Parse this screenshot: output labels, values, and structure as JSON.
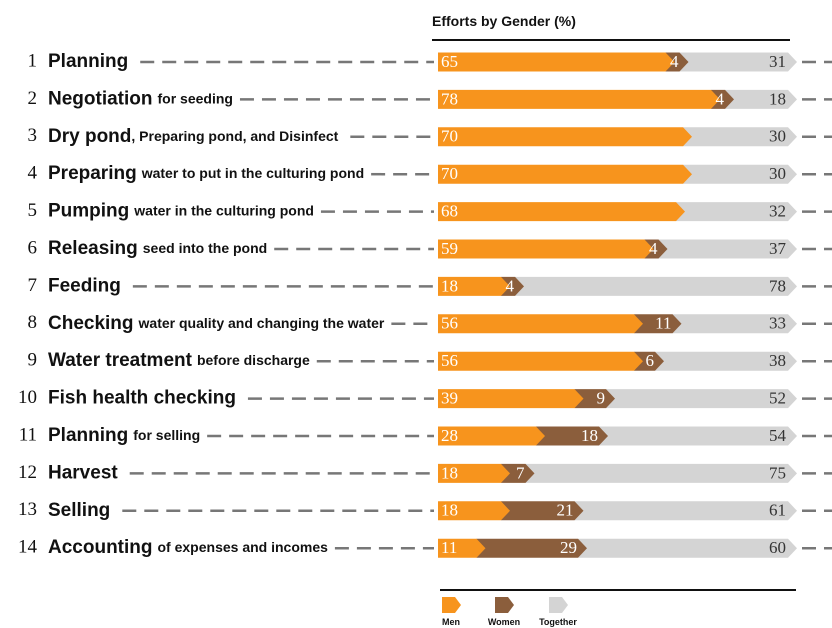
{
  "chart_data": {
    "type": "bar",
    "orientation": "horizontal",
    "stacked": true,
    "title": "Efforts by Gender (%)",
    "row_numbers": [
      1,
      2,
      3,
      4,
      5,
      6,
      7,
      8,
      9,
      10,
      11,
      12,
      13,
      14
    ],
    "categories": [
      "Planning",
      "Negotiation",
      "Dry pond",
      "Preparing",
      "Pumping",
      "Releasing",
      "Feeding",
      "Checking",
      "Water treatment",
      "Fish health checking",
      "Planning",
      "Harvest",
      "Selling",
      "Accounting"
    ],
    "category_details": [
      null,
      "for seeding",
      ", Preparing pond, and Disinfect",
      "water to put in the culturing pond",
      "water in the culturing pond",
      "seed into the pond",
      null,
      "water quality and changing the water",
      "before discharge",
      null,
      "for selling",
      null,
      null,
      "of expenses and incomes"
    ],
    "series": [
      {
        "name": "Men",
        "color": "#f7941d",
        "values": [
          65,
          78,
          70,
          70,
          68,
          59,
          18,
          56,
          56,
          39,
          28,
          18,
          18,
          11
        ]
      },
      {
        "name": "Women",
        "color": "#8b5e3c",
        "values": [
          4,
          4,
          null,
          null,
          null,
          4,
          4,
          11,
          6,
          9,
          18,
          7,
          21,
          29
        ]
      },
      {
        "name": "Together",
        "color": "#d4d4d4",
        "values": [
          31,
          18,
          30,
          30,
          32,
          37,
          78,
          33,
          38,
          52,
          54,
          75,
          61,
          60
        ]
      }
    ],
    "xlim": [
      0,
      100
    ]
  }
}
